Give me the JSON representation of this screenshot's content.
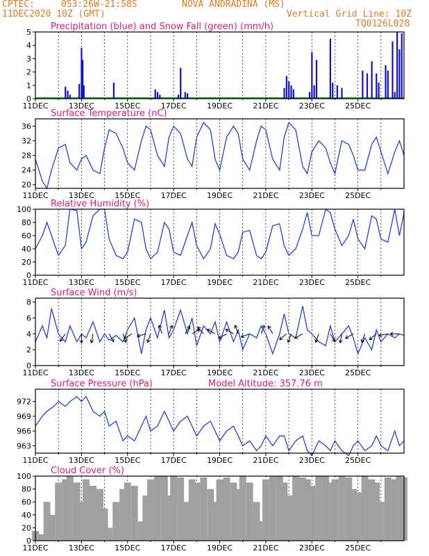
{
  "header": {
    "source": "CPTEC:",
    "coords": "053:26W-21:58S",
    "station": "NOVA ANDRADINA (MS)",
    "date": "11DEC2020 10Z (GMT)",
    "grid_note": "Vertical Grid Line: 10Z",
    "code": "TQ0126L028"
  },
  "colors": {
    "title": "#e0177a",
    "header": "#e07a22",
    "line": "#1f3fe0",
    "rain": "#1010d0",
    "snow": "#10a010",
    "cloud": "#a0a0a0"
  },
  "chart_data": [
    {
      "type": "bar",
      "title": "Precipitation (blue) and Snow Fall (green) (mm/h)",
      "x_ticks": [
        "11DEC",
        "13DEC",
        "15DEC",
        "17DEC",
        "19DEC",
        "21DEC",
        "23DEC",
        "25DEC"
      ],
      "ylim": [
        0,
        5
      ],
      "y_ticks": [
        0,
        1,
        2,
        3,
        4,
        5
      ],
      "series": [
        {
          "name": "Precipitation",
          "points": [
            [
              1.3,
              0.9
            ],
            [
              1.4,
              0.6
            ],
            [
              1.5,
              0.3
            ],
            [
              1.9,
              1.1
            ],
            [
              2.0,
              3.8
            ],
            [
              2.05,
              2.9
            ],
            [
              2.1,
              1.0
            ],
            [
              3.4,
              1.2
            ],
            [
              5.2,
              0.7
            ],
            [
              5.3,
              0.5
            ],
            [
              5.4,
              0.3
            ],
            [
              6.2,
              0.3
            ],
            [
              6.3,
              2.3
            ],
            [
              6.5,
              0.5
            ],
            [
              6.6,
              0.4
            ],
            [
              10.8,
              0.8
            ],
            [
              10.9,
              1.7
            ],
            [
              11.0,
              1.3
            ],
            [
              11.1,
              1.0
            ],
            [
              11.2,
              0.7
            ],
            [
              11.9,
              0.5
            ],
            [
              12.0,
              3.5
            ],
            [
              12.1,
              1.0
            ],
            [
              12.2,
              2.9
            ],
            [
              12.8,
              4.5
            ],
            [
              12.9,
              1.2
            ],
            [
              13.1,
              1.0
            ],
            [
              13.3,
              0.8
            ],
            [
              14.2,
              2.1
            ],
            [
              14.4,
              1.9
            ],
            [
              14.6,
              2.8
            ],
            [
              14.8,
              1.9
            ],
            [
              14.9,
              1.2
            ],
            [
              15.2,
              2.5
            ],
            [
              15.3,
              2.1
            ],
            [
              15.5,
              4.3
            ],
            [
              15.6,
              0.5
            ],
            [
              15.7,
              5.0
            ],
            [
              15.8,
              3.7
            ],
            [
              15.9,
              4.9
            ]
          ]
        },
        {
          "name": "Snow Fall",
          "points": []
        }
      ]
    },
    {
      "type": "line",
      "title": "Surface Temperature (nC)",
      "x_ticks": [
        "11DEC",
        "13DEC",
        "15DEC",
        "17DEC",
        "19DEC",
        "21DEC",
        "23DEC",
        "25DEC"
      ],
      "ylim": [
        19,
        38
      ],
      "y_ticks": [
        20,
        24,
        28,
        32,
        36
      ],
      "x": [
        0,
        0.3,
        0.5,
        0.7,
        1.0,
        1.3,
        1.5,
        1.8,
        2.0,
        2.2,
        2.5,
        2.8,
        3.0,
        3.2,
        3.5,
        3.8,
        4.0,
        4.3,
        4.6,
        4.8,
        5.0,
        5.3,
        5.6,
        5.8,
        6.0,
        6.3,
        6.6,
        6.8,
        7.0,
        7.3,
        7.6,
        7.8,
        8.0,
        8.3,
        8.6,
        8.8,
        9.0,
        9.3,
        9.6,
        9.8,
        10.0,
        10.3,
        10.6,
        10.8,
        11.0,
        11.3,
        11.6,
        11.8,
        12.0,
        12.3,
        12.6,
        12.8,
        13.0,
        13.3,
        13.6,
        13.8,
        14.0,
        14.3,
        14.6,
        14.8,
        15.0,
        15.3,
        15.6,
        15.8,
        16.0
      ],
      "values": [
        27,
        21,
        19,
        24,
        30,
        31,
        26,
        24,
        27,
        28,
        24,
        23,
        30,
        35,
        34,
        30,
        26,
        24,
        32,
        36,
        35,
        28,
        25,
        33,
        36,
        34,
        27,
        25,
        33,
        37,
        35,
        27,
        24,
        33,
        36,
        34,
        27,
        24,
        32,
        36,
        35,
        27,
        24,
        33,
        37,
        35,
        25,
        23,
        29,
        32,
        30,
        26,
        23,
        32,
        31,
        28,
        24,
        24,
        31,
        33,
        29,
        23,
        29,
        32,
        28
      ]
    },
    {
      "type": "line",
      "title": "Relative Humidity (%)",
      "x_ticks": [
        "11DEC",
        "13DEC",
        "15DEC",
        "17DEC",
        "19DEC",
        "21DEC",
        "23DEC",
        "25DEC"
      ],
      "ylim": [
        0,
        100
      ],
      "y_ticks": [
        0,
        20,
        40,
        60,
        80,
        100
      ],
      "x": [
        0,
        0.3,
        0.5,
        0.8,
        1.0,
        1.3,
        1.5,
        1.8,
        2.0,
        2.2,
        2.5,
        2.8,
        3.0,
        3.2,
        3.5,
        3.8,
        4.0,
        4.3,
        4.6,
        4.8,
        5.0,
        5.3,
        5.6,
        5.8,
        6.0,
        6.3,
        6.6,
        6.8,
        7.0,
        7.3,
        7.6,
        7.8,
        8.0,
        8.3,
        8.6,
        8.8,
        9.0,
        9.3,
        9.6,
        9.8,
        10.0,
        10.3,
        10.6,
        10.8,
        11.0,
        11.3,
        11.6,
        11.8,
        12.0,
        12.3,
        12.6,
        12.8,
        13.0,
        13.3,
        13.6,
        13.8,
        14.0,
        14.3,
        14.6,
        14.8,
        15.0,
        15.3,
        15.6,
        15.8,
        16.0
      ],
      "values": [
        40,
        60,
        80,
        50,
        30,
        45,
        100,
        98,
        40,
        50,
        90,
        100,
        100,
        55,
        30,
        25,
        35,
        85,
        80,
        40,
        25,
        35,
        80,
        70,
        35,
        30,
        60,
        80,
        45,
        25,
        40,
        78,
        62,
        30,
        25,
        35,
        65,
        68,
        30,
        25,
        35,
        75,
        78,
        45,
        30,
        40,
        70,
        95,
        60,
        60,
        100,
        95,
        70,
        45,
        60,
        85,
        55,
        40,
        90,
        85,
        55,
        50,
        100,
        60,
        95
      ]
    },
    {
      "type": "line",
      "title": "Surface Wind (m/s)",
      "x_ticks": [
        "11DEC",
        "13DEC",
        "15DEC",
        "17DEC",
        "19DEC",
        "21DEC",
        "23DEC",
        "25DEC"
      ],
      "ylim": [
        0,
        8.5
      ],
      "y_ticks": [
        0,
        2,
        4,
        6,
        8
      ],
      "x": [
        0,
        0.3,
        0.5,
        0.7,
        1.0,
        1.3,
        1.5,
        1.8,
        2.0,
        2.2,
        2.5,
        2.8,
        3.0,
        3.2,
        3.5,
        3.8,
        4.0,
        4.3,
        4.6,
        4.8,
        5.0,
        5.3,
        5.6,
        5.8,
        6.0,
        6.3,
        6.6,
        6.8,
        7.0,
        7.3,
        7.6,
        7.8,
        8.0,
        8.3,
        8.6,
        8.8,
        9.0,
        9.3,
        9.6,
        9.8,
        10.0,
        10.3,
        10.6,
        10.8,
        11.0,
        11.3,
        11.6,
        11.8,
        12.0,
        12.3,
        12.6,
        12.8,
        13.0,
        13.3,
        13.6,
        13.8,
        14.0,
        14.3,
        14.6,
        14.8,
        15.0,
        15.3,
        15.6,
        15.8,
        16.0
      ],
      "values": [
        3.0,
        5.0,
        3.5,
        7.2,
        4.0,
        3.0,
        5.0,
        3.0,
        4.0,
        3.5,
        5.5,
        3.0,
        4.0,
        3.2,
        3.8,
        3.0,
        4.5,
        6.0,
        1.5,
        4.5,
        6.0,
        3.5,
        7.0,
        3.5,
        4.5,
        7.0,
        4.0,
        6.0,
        2.5,
        5.0,
        4.0,
        5.5,
        3.0,
        5.5,
        3.0,
        4.5,
        2.0,
        4.0,
        3.5,
        5.0,
        4.0,
        1.5,
        4.0,
        6.5,
        4.0,
        3.5,
        7.5,
        4.5,
        4.0,
        3.0,
        2.5,
        5.0,
        3.0,
        4.0,
        5.0,
        3.5,
        1.5,
        3.5,
        2.0,
        4.5,
        3.0,
        4.0,
        3.5,
        4.0,
        3.8
      ],
      "arrows": [
        [
          1.3,
          215
        ],
        [
          2.0,
          180
        ],
        [
          2.5,
          190
        ],
        [
          3.2,
          150
        ],
        [
          3.8,
          160
        ],
        [
          4.2,
          240
        ],
        [
          4.8,
          255
        ],
        [
          5.0,
          200
        ],
        [
          5.5,
          340
        ],
        [
          5.8,
          20
        ],
        [
          6.5,
          30
        ],
        [
          6.8,
          60
        ],
        [
          7.3,
          320
        ],
        [
          7.8,
          300
        ],
        [
          8.3,
          240
        ],
        [
          8.6,
          300
        ],
        [
          8.8,
          340
        ],
        [
          9.3,
          250
        ],
        [
          9.8,
          20
        ],
        [
          10.3,
          330
        ],
        [
          10.9,
          230
        ],
        [
          11.1,
          200
        ],
        [
          11.6,
          240
        ],
        [
          12.3,
          200
        ],
        [
          12.8,
          150
        ],
        [
          13.3,
          190
        ],
        [
          13.8,
          240
        ],
        [
          14.3,
          200
        ],
        [
          14.8,
          230
        ],
        [
          15.3,
          260
        ],
        [
          15.8,
          270
        ]
      ]
    },
    {
      "type": "line",
      "title": "Surface Pressure (hPa)",
      "annotation": "Model Altitude: 357.76 m",
      "x_ticks": [
        "11DEC",
        "13DEC",
        "15DEC",
        "17DEC",
        "19DEC",
        "21DEC",
        "23DEC",
        "25DEC"
      ],
      "ylim": [
        961.5,
        974.5
      ],
      "y_ticks": [
        963,
        966,
        969,
        972
      ],
      "x": [
        0,
        0.3,
        0.5,
        0.8,
        1.0,
        1.3,
        1.5,
        1.8,
        2.0,
        2.2,
        2.5,
        2.8,
        3.0,
        3.2,
        3.5,
        3.8,
        4.0,
        4.3,
        4.6,
        4.8,
        5.0,
        5.3,
        5.6,
        5.8,
        6.0,
        6.3,
        6.6,
        6.8,
        7.0,
        7.3,
        7.6,
        7.8,
        8.0,
        8.3,
        8.6,
        8.8,
        9.0,
        9.3,
        9.6,
        9.8,
        10.0,
        10.3,
        10.6,
        10.8,
        11.0,
        11.3,
        11.6,
        11.8,
        12.0,
        12.3,
        12.6,
        12.8,
        13.0,
        13.3,
        13.6,
        13.8,
        14.0,
        14.3,
        14.6,
        14.8,
        15.0,
        15.3,
        15.6,
        15.8,
        16.0
      ],
      "values": [
        967,
        969,
        970,
        971,
        972,
        971,
        972,
        973,
        972,
        973,
        970,
        969,
        970,
        967,
        968,
        964,
        965,
        964,
        967,
        969,
        966,
        967,
        970,
        968,
        966,
        968,
        969,
        967,
        965,
        967,
        968,
        966,
        964,
        966,
        967,
        965,
        963,
        964,
        962,
        963,
        965,
        963,
        965,
        965,
        962,
        964,
        965,
        962,
        961,
        964,
        963,
        962,
        964,
        962,
        961,
        963,
        964,
        962,
        963,
        965,
        963,
        962,
        966,
        963,
        964
      ]
    },
    {
      "type": "bar",
      "title": "Cloud Cover (%)",
      "x_ticks": [
        "11DEC",
        "13DEC",
        "15DEC",
        "17DEC",
        "19DEC",
        "21DEC",
        "23DEC",
        "25DEC"
      ],
      "ylim": [
        0,
        100
      ],
      "y_ticks": [
        0,
        20,
        40,
        60,
        80,
        100
      ],
      "x": [
        0,
        0.3,
        0.5,
        0.7,
        1.0,
        1.3,
        1.5,
        1.8,
        2.0,
        2.2,
        2.5,
        2.8,
        3.0,
        3.2,
        3.5,
        3.8,
        4.0,
        4.3,
        4.6,
        4.8,
        5.0,
        5.3,
        5.6,
        5.8,
        6.0,
        6.3,
        6.6,
        6.8,
        7.0,
        7.3,
        7.6,
        7.8,
        8.0,
        8.3,
        8.6,
        8.8,
        9.0,
        9.3,
        9.6,
        9.8,
        10.0,
        10.3,
        10.6,
        10.8,
        11.0,
        11.3,
        11.6,
        11.8,
        12.0,
        12.3,
        12.6,
        12.8,
        13.0,
        13.3,
        13.6,
        13.8,
        14.0,
        14.3,
        14.6,
        14.8,
        15.0,
        15.3,
        15.6,
        15.8,
        16.0
      ],
      "values": [
        15,
        10,
        60,
        40,
        90,
        95,
        100,
        90,
        60,
        95,
        85,
        80,
        50,
        20,
        60,
        80,
        90,
        85,
        30,
        70,
        95,
        100,
        100,
        70,
        100,
        98,
        60,
        95,
        90,
        98,
        80,
        60,
        95,
        98,
        90,
        80,
        100,
        90,
        60,
        30,
        95,
        100,
        100,
        90,
        70,
        100,
        98,
        95,
        85,
        100,
        100,
        90,
        95,
        100,
        98,
        80,
        75,
        100,
        95,
        90,
        60,
        98,
        95,
        100,
        98
      ]
    }
  ]
}
